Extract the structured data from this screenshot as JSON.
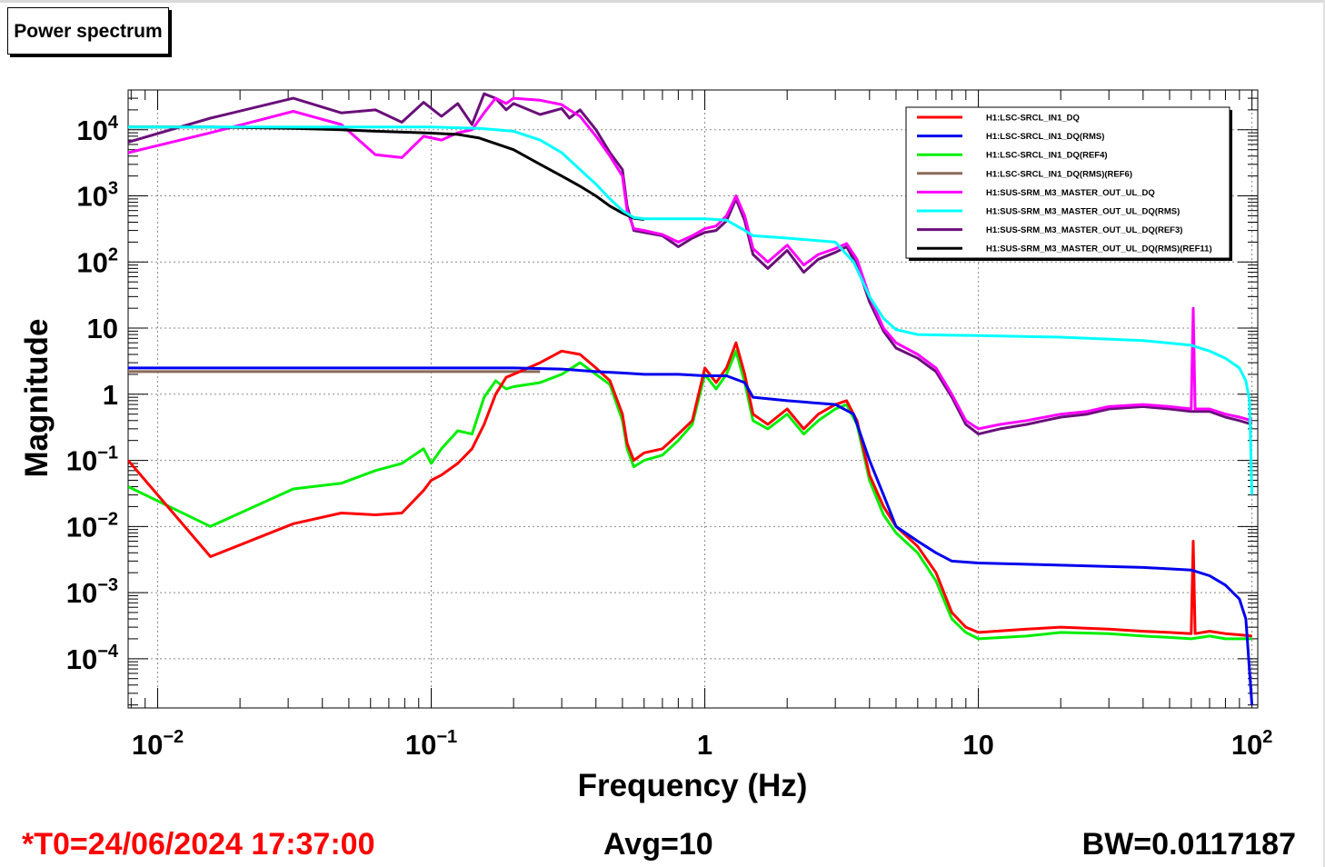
{
  "title_button": "Power spectrum",
  "footer": {
    "t0": "*T0=24/06/2024 17:37:00",
    "avg": "Avg=10",
    "bw": "BW=0.0117187"
  },
  "chart_data": {
    "type": "line",
    "xlabel": "Frequency (Hz)",
    "ylabel": "Magnitude",
    "x_scale": "log",
    "y_scale": "log",
    "xlim": [
      0.0078,
      105
    ],
    "ylim": [
      1.8e-05,
      40000
    ],
    "grid": true,
    "legend_position": "top-right",
    "x_ticks": [
      {
        "value": 0.01,
        "base": "10",
        "exp": "−2"
      },
      {
        "value": 0.1,
        "base": "10",
        "exp": "−1"
      },
      {
        "value": 1,
        "base": "1",
        "exp": ""
      },
      {
        "value": 10,
        "base": "10",
        "exp": ""
      },
      {
        "value": 100,
        "base": "10",
        "exp": "2"
      }
    ],
    "y_ticks": [
      {
        "value": 10000,
        "base": "10",
        "exp": "4"
      },
      {
        "value": 1000,
        "base": "10",
        "exp": "3"
      },
      {
        "value": 100,
        "base": "10",
        "exp": "2"
      },
      {
        "value": 10,
        "base": "10",
        "exp": ""
      },
      {
        "value": 1,
        "base": "1",
        "exp": ""
      },
      {
        "value": 0.1,
        "base": "10",
        "exp": "−1"
      },
      {
        "value": 0.01,
        "base": "10",
        "exp": "−2"
      },
      {
        "value": 0.001,
        "base": "10",
        "exp": "−3"
      },
      {
        "value": 0.0001,
        "base": "10",
        "exp": "−4"
      }
    ],
    "series": [
      {
        "name": "H1:SUS-SRM_M3_MASTER_OUT_UL_DQ(REF3)",
        "color": "#6a0f7a",
        "x": [
          0.0078,
          0.0156,
          0.0313,
          0.0469,
          0.0625,
          0.0781,
          0.0938,
          0.109,
          0.125,
          0.141,
          0.156,
          0.172,
          0.188,
          0.2,
          0.25,
          0.3,
          0.32,
          0.35,
          0.4,
          0.45,
          0.5,
          0.52,
          0.55,
          0.6,
          0.7,
          0.8,
          0.9,
          1.0,
          1.1,
          1.2,
          1.3,
          1.4,
          1.5,
          1.7,
          2.0,
          2.3,
          2.6,
          3.0,
          3.3,
          3.6,
          4.0,
          4.5,
          5.0,
          6.0,
          7.0,
          8.0,
          9.0,
          10,
          12,
          15,
          20,
          25,
          30,
          40,
          50,
          60,
          70,
          80,
          90,
          100
        ],
        "y": [
          6500,
          15000,
          30000,
          18000,
          20000,
          13000,
          26000,
          16000,
          25000,
          12000,
          35000,
          30000,
          20000,
          25000,
          17000,
          21000,
          15000,
          20000,
          10000,
          4500,
          2500,
          700,
          300,
          280,
          250,
          170,
          230,
          280,
          300,
          420,
          900,
          420,
          130,
          80,
          150,
          70,
          110,
          140,
          170,
          90,
          25,
          9,
          5,
          3.5,
          2.2,
          0.9,
          0.35,
          0.25,
          0.3,
          0.35,
          0.45,
          0.5,
          0.6,
          0.65,
          0.6,
          0.55,
          0.55,
          0.45,
          0.4,
          0.35
        ]
      },
      {
        "name": "H1:SUS-SRM_M3_MASTER_OUT_UL_DQ",
        "color": "#ff00ff",
        "x": [
          0.0078,
          0.0156,
          0.0313,
          0.0469,
          0.0625,
          0.0781,
          0.0938,
          0.109,
          0.125,
          0.141,
          0.156,
          0.172,
          0.188,
          0.2,
          0.25,
          0.3,
          0.32,
          0.35,
          0.4,
          0.45,
          0.5,
          0.52,
          0.55,
          0.6,
          0.7,
          0.8,
          0.9,
          1.0,
          1.1,
          1.2,
          1.3,
          1.4,
          1.5,
          1.7,
          2.0,
          2.3,
          2.6,
          3.0,
          3.3,
          3.6,
          4.0,
          4.5,
          5.0,
          6.0,
          7.0,
          8.0,
          9.0,
          10,
          12,
          15,
          20,
          25,
          30,
          40,
          50,
          60,
          61,
          62,
          70,
          80,
          90,
          100
        ],
        "y": [
          4500,
          9000,
          19000,
          12000,
          4200,
          3800,
          8000,
          7000,
          9000,
          10000,
          18000,
          30000,
          25000,
          30000,
          28000,
          24000,
          20000,
          16000,
          8000,
          4000,
          2000,
          600,
          320,
          300,
          260,
          200,
          250,
          320,
          350,
          500,
          1000,
          500,
          160,
          100,
          180,
          90,
          130,
          160,
          190,
          110,
          30,
          10,
          6,
          4,
          2.5,
          1.0,
          0.4,
          0.3,
          0.35,
          0.4,
          0.5,
          0.55,
          0.65,
          0.7,
          0.65,
          0.6,
          20,
          0.6,
          0.6,
          0.5,
          0.45,
          0.4
        ]
      },
      {
        "name": "H1:SUS-SRM_M3_MASTER_OUT_UL_DQ(RMS)(REF11)",
        "color": "#000000",
        "x": [
          0.0078,
          0.0156,
          0.0313,
          0.0469,
          0.0625,
          0.0938,
          0.125,
          0.15,
          0.2,
          0.25,
          0.3,
          0.35,
          0.4,
          0.45,
          0.5,
          0.55,
          0.6
        ],
        "y": [
          11000,
          11000,
          10500,
          10000,
          9500,
          9000,
          8500,
          7500,
          5000,
          3000,
          2000,
          1400,
          1000,
          700,
          550,
          460,
          440
        ]
      },
      {
        "name": "H1:SUS-SRM_M3_MASTER_OUT_UL_DQ(RMS)",
        "color": "#00ffff",
        "x": [
          0.0078,
          0.02,
          0.05,
          0.1,
          0.15,
          0.2,
          0.25,
          0.3,
          0.35,
          0.4,
          0.45,
          0.5,
          0.55,
          0.6,
          0.8,
          1.0,
          1.2,
          1.4,
          1.5,
          2.0,
          3.0,
          3.5,
          4.0,
          4.5,
          5.0,
          6.0,
          8.0,
          10,
          20,
          40,
          60,
          70,
          80,
          90,
          95,
          98,
          100
        ],
        "y": [
          11000,
          11000,
          11000,
          11000,
          10500,
          9500,
          7000,
          4500,
          2500,
          1500,
          900,
          600,
          470,
          450,
          450,
          450,
          430,
          300,
          250,
          230,
          200,
          100,
          30,
          14,
          9.5,
          8,
          7.8,
          7.7,
          7.3,
          6.5,
          5.5,
          4.5,
          3.5,
          2.5,
          1.6,
          0.8,
          0.03
        ]
      },
      {
        "name": "H1:LSC-SRCL_IN1_DQ(RMS)(REF6)",
        "color": "#8b6a5a",
        "x": [
          0.0078,
          0.02,
          0.05,
          0.1,
          0.2,
          0.25
        ],
        "y": [
          2.2,
          2.2,
          2.2,
          2.2,
          2.2,
          2.2
        ]
      },
      {
        "name": "H1:LSC-SRCL_IN1_DQ(REF4)",
        "color": "#00ee00",
        "x": [
          0.0078,
          0.0156,
          0.0313,
          0.0469,
          0.0625,
          0.0781,
          0.0938,
          0.1,
          0.109,
          0.125,
          0.141,
          0.156,
          0.172,
          0.188,
          0.2,
          0.25,
          0.3,
          0.35,
          0.4,
          0.45,
          0.5,
          0.52,
          0.55,
          0.6,
          0.7,
          0.8,
          0.9,
          1.0,
          1.1,
          1.2,
          1.3,
          1.4,
          1.5,
          1.7,
          2.0,
          2.3,
          2.6,
          3.0,
          3.3,
          3.6,
          4.0,
          4.5,
          5.0,
          6.0,
          7.0,
          8.0,
          9.0,
          10,
          15,
          20,
          30,
          40,
          50,
          60,
          70,
          80,
          90,
          100
        ],
        "y": [
          0.04,
          0.01,
          0.037,
          0.045,
          0.07,
          0.09,
          0.15,
          0.09,
          0.15,
          0.28,
          0.25,
          0.9,
          1.6,
          1.2,
          1.3,
          1.5,
          2.0,
          3.0,
          2.0,
          1.4,
          0.4,
          0.15,
          0.08,
          0.1,
          0.12,
          0.2,
          0.35,
          2.0,
          1.2,
          2.0,
          4.5,
          1.5,
          0.4,
          0.3,
          0.5,
          0.25,
          0.4,
          0.6,
          0.7,
          0.35,
          0.05,
          0.015,
          0.008,
          0.004,
          0.0015,
          0.0004,
          0.00025,
          0.0002,
          0.00022,
          0.00025,
          0.00024,
          0.00022,
          0.00021,
          0.0002,
          0.00022,
          0.0002,
          0.0002,
          0.0002
        ]
      },
      {
        "name": "H1:LSC-SRCL_IN1_DQ",
        "color": "#ff0000",
        "x": [
          0.0078,
          0.0156,
          0.0313,
          0.0469,
          0.0625,
          0.0781,
          0.0938,
          0.1,
          0.109,
          0.125,
          0.141,
          0.156,
          0.172,
          0.188,
          0.2,
          0.25,
          0.3,
          0.35,
          0.4,
          0.45,
          0.5,
          0.52,
          0.55,
          0.6,
          0.7,
          0.8,
          0.9,
          1.0,
          1.1,
          1.2,
          1.3,
          1.4,
          1.5,
          1.7,
          2.0,
          2.3,
          2.6,
          3.0,
          3.3,
          3.6,
          4.0,
          4.5,
          5.0,
          6.0,
          7.0,
          8.0,
          9.0,
          10,
          15,
          20,
          30,
          40,
          50,
          60,
          61,
          62,
          70,
          80,
          90,
          100
        ],
        "y": [
          0.1,
          0.0035,
          0.011,
          0.016,
          0.015,
          0.016,
          0.035,
          0.05,
          0.06,
          0.09,
          0.15,
          0.35,
          1.0,
          1.8,
          2.0,
          3.0,
          4.5,
          4.0,
          2.5,
          1.6,
          0.5,
          0.18,
          0.1,
          0.13,
          0.15,
          0.25,
          0.4,
          2.5,
          1.5,
          2.5,
          6.0,
          2.0,
          0.5,
          0.35,
          0.6,
          0.3,
          0.5,
          0.7,
          0.8,
          0.4,
          0.06,
          0.02,
          0.01,
          0.005,
          0.002,
          0.0005,
          0.0003,
          0.00025,
          0.00028,
          0.0003,
          0.00028,
          0.00026,
          0.00025,
          0.00024,
          0.006,
          0.00024,
          0.00026,
          0.00024,
          0.00023,
          0.00022
        ]
      },
      {
        "name": "H1:LSC-SRCL_IN1_DQ(RMS)",
        "color": "#0000ee",
        "x": [
          0.0078,
          0.02,
          0.05,
          0.1,
          0.2,
          0.3,
          0.4,
          0.5,
          0.6,
          0.8,
          1.0,
          1.2,
          1.4,
          1.5,
          2.0,
          3.0,
          3.5,
          4.0,
          4.5,
          5.0,
          6.0,
          7.0,
          8.0,
          10,
          20,
          40,
          60,
          70,
          80,
          90,
          95,
          100
        ],
        "y": [
          2.5,
          2.5,
          2.5,
          2.5,
          2.5,
          2.4,
          2.2,
          2.1,
          2.0,
          2.0,
          1.9,
          1.9,
          1.5,
          0.9,
          0.8,
          0.7,
          0.5,
          0.1,
          0.03,
          0.01,
          0.006,
          0.004,
          0.003,
          0.0028,
          0.0026,
          0.0024,
          0.0022,
          0.0018,
          0.0013,
          0.0008,
          0.0004,
          2e-05
        ]
      }
    ],
    "legend": [
      {
        "label": "H1:LSC-SRCL_IN1_DQ",
        "color": "#ff0000"
      },
      {
        "label": "H1:LSC-SRCL_IN1_DQ(RMS)",
        "color": "#0000ee"
      },
      {
        "label": "H1:LSC-SRCL_IN1_DQ(REF4)",
        "color": "#00ee00"
      },
      {
        "label": "H1:LSC-SRCL_IN1_DQ(RMS)(REF6)",
        "color": "#8b6a5a"
      },
      {
        "label": "H1:SUS-SRM_M3_MASTER_OUT_UL_DQ",
        "color": "#ff00ff"
      },
      {
        "label": "H1:SUS-SRM_M3_MASTER_OUT_UL_DQ(RMS)",
        "color": "#00ffff"
      },
      {
        "label": "H1:SUS-SRM_M3_MASTER_OUT_UL_DQ(REF3)",
        "color": "#6a0f7a"
      },
      {
        "label": "H1:SUS-SRM_M3_MASTER_OUT_UL_DQ(RMS)(REF11)",
        "color": "#000000"
      }
    ]
  }
}
